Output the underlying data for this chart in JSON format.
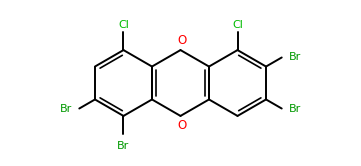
{
  "bg_color": "#ffffff",
  "bond_color": "#000000",
  "cl_color": "#00bb00",
  "br_color": "#009900",
  "o_color": "#ff0000",
  "line_width": 1.4,
  "font_size": 8.0,
  "figsize": [
    3.61,
    1.66
  ],
  "dpi": 100,
  "xlim": [
    -5.2,
    5.2
  ],
  "ylim": [
    -2.5,
    2.5
  ]
}
